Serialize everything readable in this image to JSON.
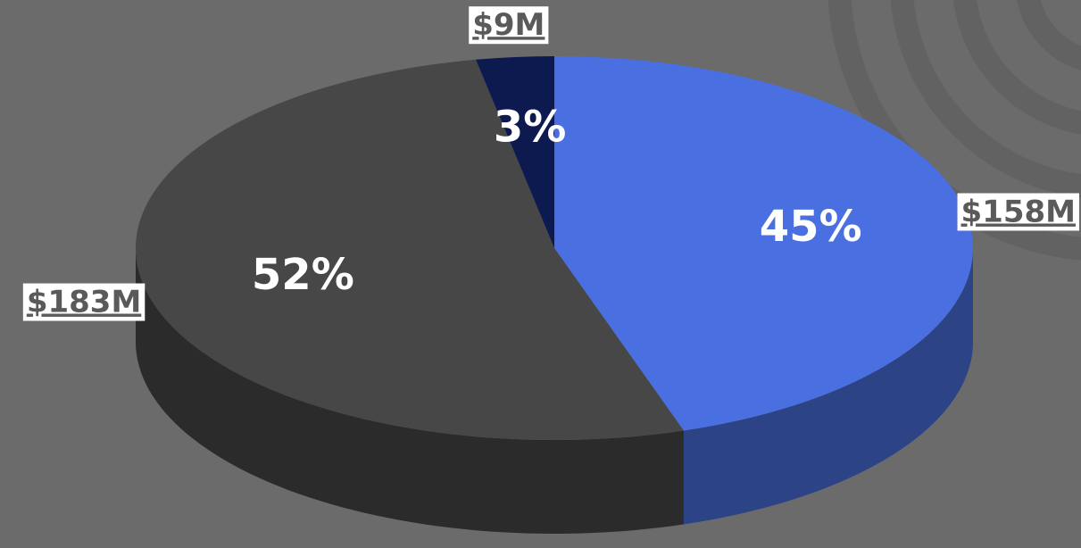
{
  "chart_data": {
    "type": "pie3d",
    "values": [
      45,
      52,
      3
    ],
    "value_labels": [
      "45%",
      "52%",
      "3%"
    ],
    "amounts": [
      158000000,
      183000000,
      9000000
    ],
    "amount_labels": [
      "$158M",
      "$183M",
      "$9M"
    ],
    "colors": [
      "#4a6fe0",
      "#474747",
      "#0d1a4f"
    ]
  }
}
